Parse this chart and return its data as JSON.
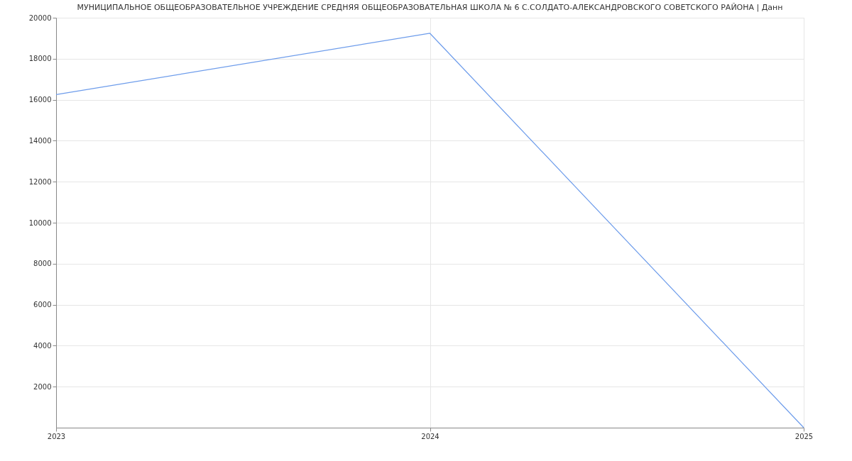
{
  "chart_data": {
    "type": "line",
    "title": "МУНИЦИПАЛЬНОЕ ОБЩЕОБРАЗОВАТЕЛЬНОЕ УЧРЕЖДЕНИЕ СРЕДНЯЯ ОБЩЕОБРАЗОВАТЕЛЬНАЯ ШКОЛА № 6 С.СОЛДАТО-АЛЕКСАНДРОВСКОГО СОВЕТСКОГО РАЙОНА | Данн",
    "categories": [
      "2023",
      "2024",
      "2025"
    ],
    "series": [
      {
        "color": "#6d9ceb",
        "values": [
          16250,
          19240,
          0
        ]
      }
    ],
    "ylim": [
      0,
      20000
    ],
    "yticks": [
      2000,
      4000,
      6000,
      8000,
      10000,
      12000,
      14000,
      16000,
      18000,
      20000
    ],
    "grid": true,
    "marker": "none",
    "line_style": "solid",
    "legend": false
  }
}
